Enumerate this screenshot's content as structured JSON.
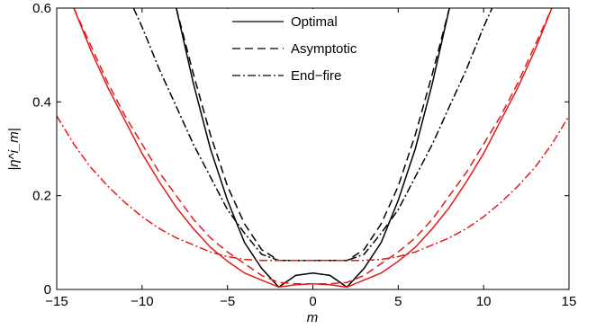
{
  "chart_data": {
    "type": "line",
    "xlabel": "m",
    "ylabel": "|η^i_m|",
    "xlim": [
      -15,
      15
    ],
    "ylim": [
      0,
      0.6
    ],
    "xticks": [
      -15,
      -10,
      -5,
      0,
      5,
      10,
      15
    ],
    "xtick_labels": [
      "−15",
      "−10",
      "−5",
      "0",
      "5",
      "10",
      "15"
    ],
    "yticks": [
      0,
      0.2,
      0.4,
      0.6
    ],
    "ytick_labels": [
      "0",
      "0.2",
      "0.4",
      "0.6"
    ],
    "grid": false,
    "legend_position": "top-center",
    "legend": [
      {
        "label": "Optimal",
        "style": "solid"
      },
      {
        "label": "Asymptotic",
        "style": "dashed"
      },
      {
        "label": "End−fire",
        "style": "dashdot"
      }
    ],
    "series": [
      {
        "color": "#000000",
        "style": "solid",
        "x": [
          -8,
          -7,
          -6,
          -5,
          -4,
          -3,
          -2,
          -1,
          0,
          1,
          2,
          3,
          4,
          5,
          6,
          7,
          8
        ],
        "y": [
          0.6,
          0.44,
          0.3,
          0.19,
          0.1,
          0.045,
          0.005,
          0.03,
          0.035,
          0.03,
          0.005,
          0.045,
          0.1,
          0.19,
          0.3,
          0.44,
          0.6
        ]
      },
      {
        "color": "#000000",
        "style": "dashed",
        "x": [
          -8,
          -7,
          -6,
          -5,
          -4,
          -3,
          -2,
          -1,
          0,
          1,
          2,
          3,
          4,
          5,
          6,
          7,
          8
        ],
        "y": [
          0.6,
          0.46,
          0.33,
          0.22,
          0.14,
          0.085,
          0.062,
          0.062,
          0.062,
          0.062,
          0.062,
          0.085,
          0.14,
          0.22,
          0.33,
          0.46,
          0.6
        ]
      },
      {
        "color": "#000000",
        "style": "dashdot",
        "x": [
          -10.5,
          -10,
          -9,
          -8,
          -7,
          -6,
          -5,
          -4,
          -3,
          -2,
          -1,
          0,
          1,
          2,
          3,
          4,
          5,
          6,
          7,
          8,
          9,
          10,
          10.5
        ],
        "y": [
          0.6,
          0.56,
          0.47,
          0.39,
          0.31,
          0.24,
          0.17,
          0.12,
          0.075,
          0.062,
          0.062,
          0.062,
          0.062,
          0.062,
          0.075,
          0.12,
          0.17,
          0.24,
          0.31,
          0.39,
          0.47,
          0.56,
          0.6
        ]
      },
      {
        "color": "#e41a1c",
        "style": "solid",
        "x": [
          -14,
          -13,
          -12,
          -11,
          -10,
          -9,
          -8,
          -7,
          -6,
          -5,
          -4,
          -3,
          -2,
          -1,
          0,
          1,
          2,
          3,
          4,
          5,
          6,
          7,
          8,
          9,
          10,
          11,
          12,
          13,
          14
        ],
        "y": [
          0.6,
          0.51,
          0.43,
          0.36,
          0.29,
          0.23,
          0.175,
          0.13,
          0.09,
          0.06,
          0.035,
          0.02,
          0.005,
          0.01,
          0.012,
          0.01,
          0.005,
          0.02,
          0.035,
          0.06,
          0.09,
          0.13,
          0.175,
          0.23,
          0.29,
          0.36,
          0.43,
          0.51,
          0.6
        ]
      },
      {
        "color": "#e41a1c",
        "style": "dashed",
        "x": [
          -14,
          -13,
          -12,
          -11,
          -10,
          -9,
          -8,
          -7,
          -6,
          -5,
          -4,
          -3,
          -2,
          -1,
          0,
          1,
          2,
          3,
          4,
          5,
          6,
          7,
          8,
          9,
          10,
          11,
          12,
          13,
          14
        ],
        "y": [
          0.6,
          0.52,
          0.44,
          0.37,
          0.31,
          0.25,
          0.2,
          0.15,
          0.11,
          0.08,
          0.055,
          0.03,
          0.015,
          0.012,
          0.012,
          0.012,
          0.015,
          0.03,
          0.055,
          0.08,
          0.11,
          0.15,
          0.2,
          0.25,
          0.31,
          0.37,
          0.44,
          0.52,
          0.6
        ]
      },
      {
        "color": "#e41a1c",
        "style": "dashdot",
        "x": [
          -15,
          -14,
          -13,
          -12,
          -11,
          -10,
          -9,
          -8,
          -7,
          -6,
          -5,
          -4,
          -3,
          -2,
          -1,
          0,
          1,
          2,
          3,
          4,
          5,
          6,
          7,
          8,
          9,
          10,
          11,
          12,
          13,
          14,
          15
        ],
        "y": [
          0.37,
          0.31,
          0.26,
          0.22,
          0.185,
          0.155,
          0.13,
          0.11,
          0.095,
          0.08,
          0.07,
          0.064,
          0.062,
          0.062,
          0.062,
          0.062,
          0.062,
          0.062,
          0.062,
          0.064,
          0.07,
          0.08,
          0.095,
          0.11,
          0.13,
          0.155,
          0.185,
          0.22,
          0.26,
          0.31,
          0.37
        ]
      }
    ]
  }
}
